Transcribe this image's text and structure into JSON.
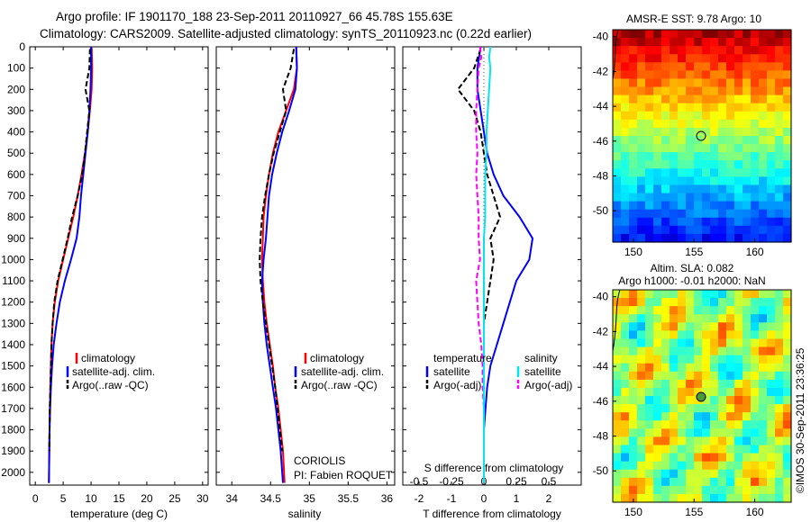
{
  "header": {
    "line1": "Argo profile: IF 1901170_188 23-Sep-2011 20110927_66 45.78S 155.63E",
    "line2": "Climatology: CARS2009. Satellite-adjusted climatology: synTS_20110923.nc (0.22d earlier)"
  },
  "colors": {
    "climatology": "#ff0000",
    "satellite": "#0000ff",
    "argo": "#000000",
    "sat_sal": "#00e5ee",
    "argo_sal": "#ff00ff"
  },
  "depth_ticks": [
    "0",
    "100",
    "200",
    "300",
    "400",
    "500",
    "600",
    "700",
    "800",
    "900",
    "1000",
    "1100",
    "1200",
    "1300",
    "1400",
    "1500",
    "1600",
    "1700",
    "1800",
    "1900",
    "2000"
  ],
  "temp_panel": {
    "xlabel": "temperature (deg C)",
    "xticks": [
      "0",
      "5",
      "10",
      "15",
      "20",
      "25",
      "30"
    ],
    "legend": [
      "climatology",
      "satellite-adj. clim.",
      "Argo(..raw -QC)"
    ]
  },
  "sal_panel": {
    "xlabel": "salinity",
    "xticks": [
      "34",
      "34.5",
      "35",
      "35.5",
      "36"
    ],
    "legend": [
      "climatology",
      "satellite-adj. clim.",
      "Argo(..raw -QC)"
    ],
    "note1": "CORIOLIS",
    "note2": "PI: Fabien ROQUET"
  },
  "diff_panel": {
    "xlabel": "T difference from climatology",
    "top_label": "S difference from climatology",
    "t_ticks": [
      "-2",
      "-1",
      "0",
      "1",
      "2"
    ],
    "s_ticks": [
      "-0.5",
      "-0.25",
      "0",
      "0.25",
      "0.5"
    ],
    "legend_temp_title": "temperature",
    "legend_sal_title": "salinity",
    "legend_temp": [
      "satellite",
      "Argo(-adj)"
    ],
    "legend_sal": [
      "satellite",
      "Argo(-adj)"
    ]
  },
  "sst_map": {
    "title": "AMSR-E SST: 9.78 Argo: 10",
    "yticks": [
      "-40",
      "-42",
      "-44",
      "-46",
      "-48",
      "-50"
    ],
    "xticks": [
      "150",
      "155",
      "160"
    ]
  },
  "sla_map": {
    "title1": "Altim. SLA: 0.082",
    "title2": "Argo h1000: -0.01 h2000: NaN",
    "yticks": [
      "-40",
      "-42",
      "-44",
      "-46",
      "-48",
      "-50"
    ],
    "xticks": [
      "150",
      "155",
      "160"
    ]
  },
  "credit": "©IMOS 30-Sep-2011 23:36:25",
  "chart_data": [
    {
      "type": "line",
      "xlabel": "temperature (deg C)",
      "ylabel": "",
      "xlim": [
        -1,
        31
      ],
      "ylim": [
        2060,
        0
      ],
      "y_inverted": true,
      "series": [
        {
          "name": "climatology",
          "x": [
            10.1,
            10.2,
            10.1,
            9.8,
            9.4,
            8.9,
            8.3,
            7.6,
            6.8,
            5.9,
            5.0,
            4.1,
            3.5,
            3.1,
            2.9,
            2.8,
            2.7,
            2.6,
            2.55,
            2.5,
            2.45
          ],
          "y": [
            0,
            100,
            200,
            300,
            400,
            500,
            600,
            700,
            800,
            900,
            1000,
            1100,
            1200,
            1300,
            1400,
            1500,
            1600,
            1700,
            1800,
            1900,
            2050
          ]
        },
        {
          "name": "satellite-adj. clim.",
          "x": [
            10.0,
            10.0,
            9.9,
            9.7,
            9.4,
            9.0,
            8.6,
            8.2,
            7.9,
            7.4,
            6.4,
            5.3,
            4.4,
            3.8,
            3.3,
            3.0,
            2.8,
            2.65,
            2.55,
            2.5,
            2.45
          ],
          "y": [
            0,
            100,
            200,
            300,
            400,
            500,
            600,
            700,
            800,
            900,
            1000,
            1100,
            1200,
            1300,
            1400,
            1500,
            1600,
            1700,
            1800,
            1900,
            2050
          ]
        },
        {
          "name": "Argo(..raw -QC)",
          "x": [
            9.8,
            9.7,
            9.0,
            9.7,
            9.3,
            8.9,
            8.4,
            7.6,
            6.6,
            5.8,
            4.9,
            4.0,
            3.4,
            3.1,
            2.9,
            2.8,
            2.7,
            2.6,
            2.55,
            2.5
          ],
          "y": [
            10,
            100,
            200,
            300,
            400,
            500,
            600,
            700,
            800,
            900,
            1000,
            1100,
            1200,
            1300,
            1400,
            1500,
            1600,
            1700,
            1800,
            1900
          ]
        }
      ]
    },
    {
      "type": "line",
      "xlabel": "salinity",
      "ylabel": "",
      "xlim": [
        33.8,
        36.1
      ],
      "ylim": [
        2060,
        0
      ],
      "y_inverted": true,
      "series": [
        {
          "name": "climatology",
          "x": [
            34.83,
            34.84,
            34.8,
            34.7,
            34.6,
            34.53,
            34.48,
            34.44,
            34.41,
            34.4,
            34.39,
            34.4,
            34.42,
            34.45,
            34.49,
            34.53,
            34.56,
            34.6,
            34.63,
            34.66,
            34.68
          ],
          "y": [
            0,
            100,
            200,
            300,
            400,
            500,
            600,
            700,
            800,
            900,
            1000,
            1100,
            1200,
            1300,
            1400,
            1500,
            1600,
            1700,
            1800,
            1900,
            2050
          ]
        },
        {
          "name": "satellite-adj. clim.",
          "x": [
            34.83,
            34.84,
            34.82,
            34.74,
            34.65,
            34.58,
            34.52,
            34.48,
            34.46,
            34.44,
            34.41,
            34.39,
            34.4,
            34.42,
            34.45,
            34.49,
            34.53,
            34.57,
            34.6,
            34.63,
            34.66
          ],
          "y": [
            0,
            100,
            200,
            300,
            400,
            500,
            600,
            700,
            800,
            900,
            1000,
            1100,
            1200,
            1300,
            1400,
            1500,
            1600,
            1700,
            1800,
            1900,
            2050
          ]
        },
        {
          "name": "Argo(..raw -QC)",
          "x": [
            34.8,
            34.76,
            34.66,
            34.7,
            34.62,
            34.54,
            34.48,
            34.43,
            34.39,
            34.37,
            34.36,
            34.37,
            34.4,
            34.44,
            34.48,
            34.52,
            34.56,
            34.59,
            34.62,
            34.65
          ],
          "y": [
            10,
            100,
            200,
            300,
            400,
            500,
            600,
            700,
            800,
            900,
            1000,
            1100,
            1200,
            1300,
            1400,
            1500,
            1600,
            1700,
            1800,
            1900
          ]
        }
      ]
    },
    {
      "type": "line",
      "xlabel": "T difference from climatology",
      "ylabel": "",
      "xlim": [
        -2.5,
        3
      ],
      "ylim": [
        2060,
        0
      ],
      "y_inverted": true,
      "series": [
        {
          "name": "temperature satellite",
          "x": [
            -0.1,
            -0.2,
            -0.2,
            -0.1,
            0.0,
            0.1,
            0.3,
            0.6,
            1.1,
            1.5,
            1.4,
            1.0,
            0.8,
            0.6,
            0.4,
            0.2,
            0.1,
            0.05,
            0.0,
            0.0,
            0.0
          ],
          "y": [
            0,
            100,
            200,
            300,
            400,
            500,
            600,
            700,
            800,
            900,
            1000,
            1100,
            1200,
            1300,
            1400,
            1500,
            1600,
            1700,
            1800,
            1900,
            2050
          ]
        },
        {
          "name": "temperature Argo(-adj)",
          "x": [
            -0.1,
            -0.3,
            -0.8,
            -0.3,
            -0.1,
            0.0,
            0.1,
            0.3,
            0.5,
            0.2,
            0.3,
            0.2,
            0.1,
            0.0,
            0.0,
            0.0,
            0.0,
            0.0,
            0.0,
            0.0
          ],
          "y": [
            10,
            100,
            200,
            300,
            400,
            500,
            600,
            700,
            800,
            900,
            1000,
            1100,
            1200,
            1300,
            1400,
            1500,
            1600,
            1700,
            1800,
            1900
          ]
        }
      ]
    }
  ]
}
